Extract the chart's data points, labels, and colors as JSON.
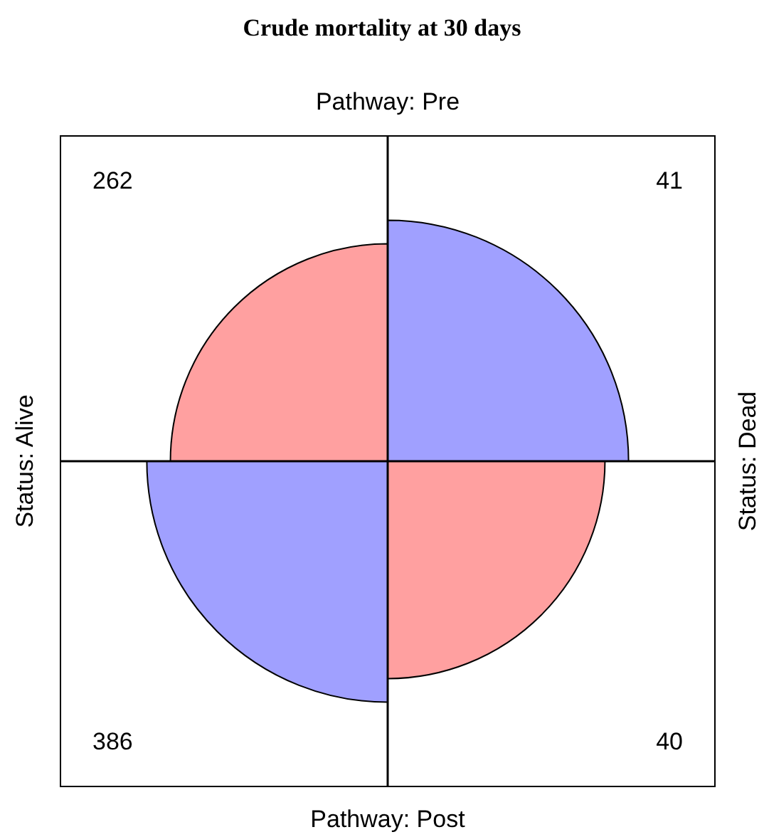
{
  "chart_data": {
    "type": "other",
    "title": "Crude mortality at 30 days",
    "x2label": "Pathway: Pre",
    "xlabel": "Pathway: Post",
    "ylabel": "Status: Alive",
    "y2label": "Status: Dead",
    "values": [
      262,
      41,
      386,
      40
    ],
    "colors": [
      "#ffa0a0",
      "#a0a0ff",
      "#a0a0ff",
      "#ffa0a0"
    ],
    "data_labels": true
  }
}
